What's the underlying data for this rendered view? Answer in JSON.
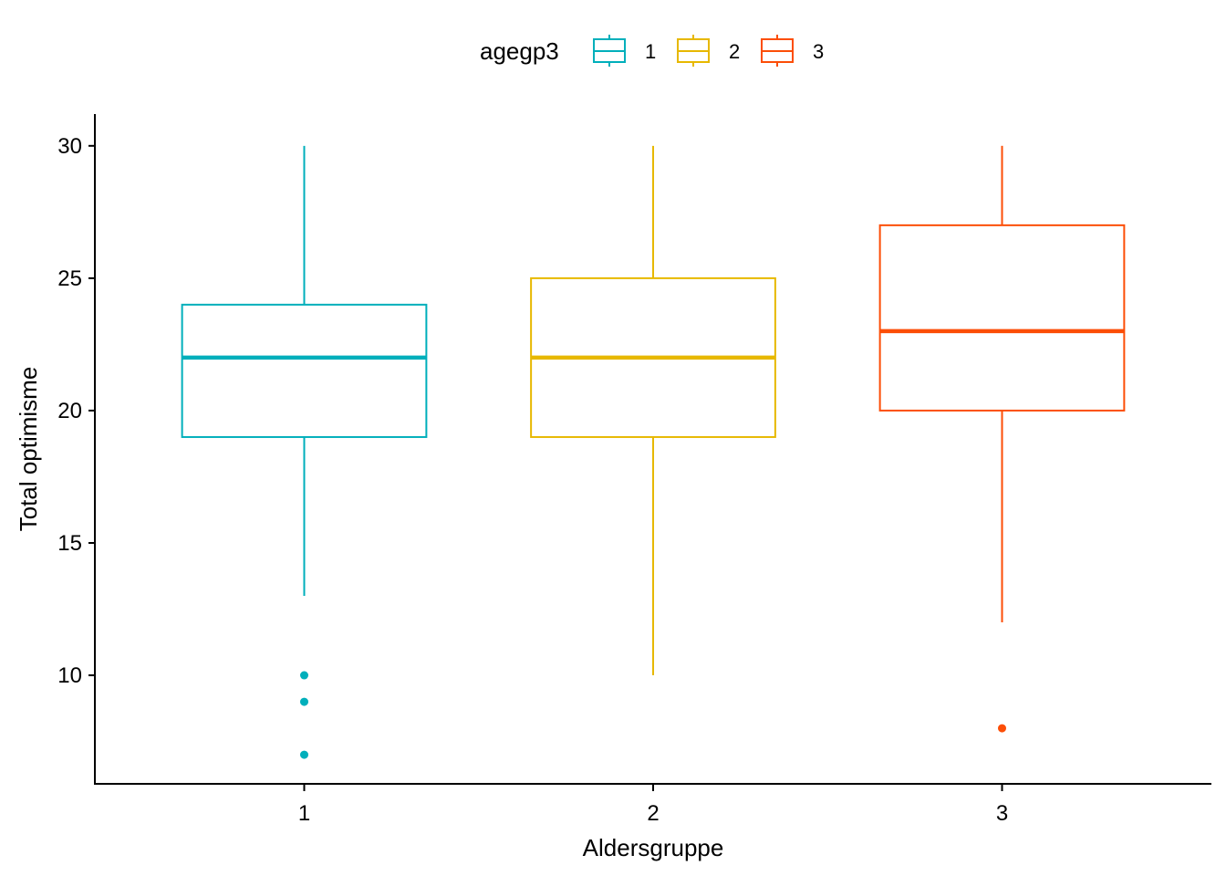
{
  "chart_data": {
    "type": "boxplot",
    "xlabel": "Aldersgruppe",
    "ylabel": "Total optimisme",
    "ylim": [
      5.9,
      31.2
    ],
    "yticks": [
      10,
      15,
      20,
      25,
      30
    ],
    "categories": [
      "1",
      "2",
      "3"
    ],
    "grid": false,
    "legend": {
      "title": "agegp3",
      "position": "top",
      "entries": [
        "1",
        "2",
        "3"
      ]
    },
    "series": [
      {
        "name": "1",
        "color": "#00AFBB",
        "whisker_low": 13,
        "q1": 19,
        "median": 22,
        "q3": 24,
        "whisker_high": 30,
        "outliers": [
          10,
          9,
          7
        ]
      },
      {
        "name": "2",
        "color": "#E7B800",
        "whisker_low": 10,
        "q1": 19,
        "median": 22,
        "q3": 25,
        "whisker_high": 30,
        "outliers": []
      },
      {
        "name": "3",
        "color": "#FC4E07",
        "whisker_low": 12,
        "q1": 20,
        "median": 23,
        "q3": 27,
        "whisker_high": 30,
        "outliers": [
          8
        ]
      }
    ]
  }
}
